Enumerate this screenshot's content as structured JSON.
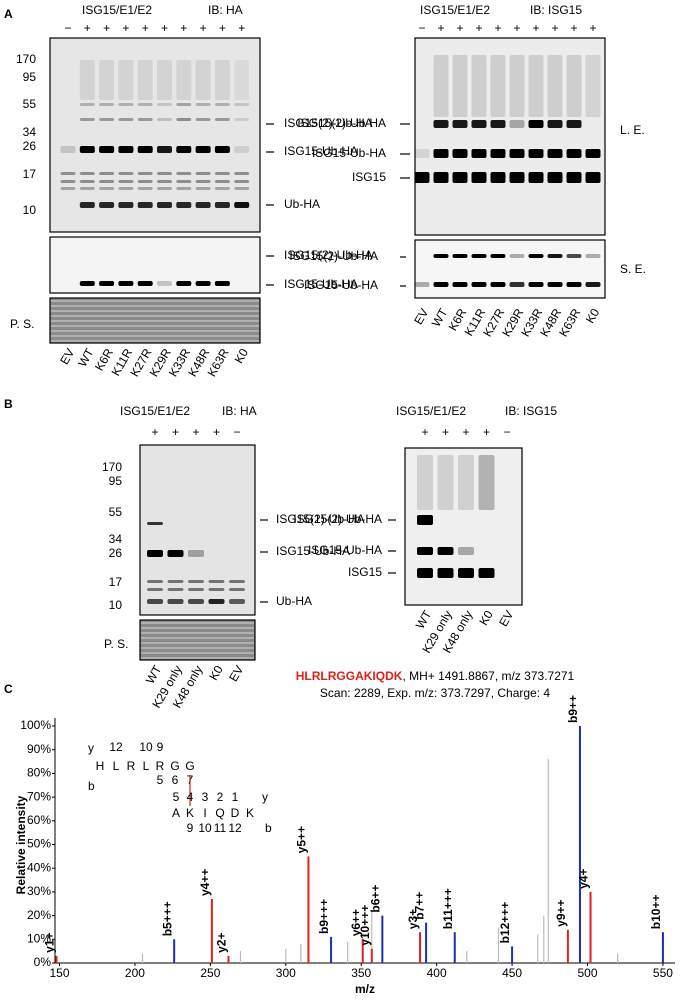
{
  "panel_a": {
    "label": "A",
    "left": {
      "header": "ISG15/E1/E2",
      "ib": "IB: HA",
      "signs": [
        "−",
        "+",
        "+",
        "+",
        "+",
        "+",
        "+",
        "+",
        "+",
        "+"
      ],
      "mw_markers": [
        170,
        95,
        55,
        34,
        26,
        17,
        10
      ],
      "bands": [
        "ISG15(2)-Ub-HA",
        "ISG15-Ub-HA",
        "Ub-HA"
      ],
      "se_bands": [
        "ISG15(2)-Ub-HA",
        "ISG15-Ub-HA"
      ],
      "ps": "P. S.",
      "lanes": [
        "EV",
        "WT",
        "K6R",
        "K11R",
        "K27R",
        "K29R",
        "K33R",
        "K48R",
        "K63R",
        "K0"
      ]
    },
    "right": {
      "header": "ISG15/E1/E2",
      "ib": "IB: ISG15",
      "signs": [
        "−",
        "+",
        "+",
        "+",
        "+",
        "+",
        "+",
        "+",
        "+",
        "+"
      ],
      "bands": [
        "ISG15(2)-Ub-HA",
        "ISG15-Ub-HA",
        "ISG15"
      ],
      "le": "L. E.",
      "se": "S. E.",
      "se_bands": [
        "ISG15(2)-Ub-HA",
        "ISG15-Ub-HA"
      ],
      "lanes": [
        "EV",
        "WT",
        "K6R",
        "K11R",
        "K27R",
        "K29R",
        "K33R",
        "K48R",
        "K63R",
        "K0"
      ]
    }
  },
  "panel_b": {
    "label": "B",
    "left": {
      "header": "ISG15/E1/E2",
      "ib": "IB: HA",
      "signs": [
        "+",
        "+",
        "+",
        "+",
        "−"
      ],
      "mw_markers": [
        170,
        95,
        55,
        34,
        26,
        17,
        10
      ],
      "bands": [
        "ISG15(2)-Ub-HA",
        "ISG15-Ub-HA",
        "Ub-HA"
      ],
      "ps": "P. S.",
      "lanes": [
        "WT",
        "K29 only",
        "K48 only",
        "K0",
        "EV"
      ]
    },
    "right": {
      "header": "ISG15/E1/E2",
      "ib": "IB: ISG15",
      "signs": [
        "+",
        "+",
        "+",
        "+",
        "−"
      ],
      "bands": [
        "ISG15(2)-Ub-HA",
        "ISG15-Ub-HA",
        "ISG15"
      ],
      "lanes": [
        "WT",
        "K29 only",
        "K48 only",
        "K0",
        "EV"
      ]
    }
  },
  "panel_c": {
    "label": "C",
    "peptide": "HLRLRGGAKIQDK",
    "peptide_info": ", MH+ 1491.8867, m/z 373.7271",
    "scan_info": "Scan: 2289, Exp. m/z: 373.7297, Charge: 4",
    "fragment_map": {
      "y_label": "y",
      "b_label": "b",
      "top_numbers": [
        12,
        10,
        9
      ],
      "letters1": [
        "H",
        "L",
        "R",
        "L",
        "R",
        "G",
        "G"
      ],
      "mid_numbers": [
        5,
        6,
        7
      ],
      "y_numbers2": [
        5,
        4,
        3,
        2,
        1
      ],
      "letters2": [
        "A",
        "K",
        "I",
        "Q",
        "D",
        "K"
      ],
      "b_numbers2": [
        9,
        10,
        11,
        12
      ]
    }
  },
  "chart_data": {
    "type": "stem",
    "x_label": "m/z",
    "y_label": "Relative intensity",
    "xlim": [
      147,
      558
    ],
    "xticks": [
      150,
      200,
      250,
      300,
      350,
      400,
      450,
      500,
      550
    ],
    "ylim": [
      0,
      100
    ],
    "yticks": [
      {
        "value": 0,
        "label": "0%"
      },
      {
        "value": 10,
        "label": "10%"
      },
      {
        "value": 20,
        "label": "20%"
      },
      {
        "value": 30,
        "label": "30%"
      },
      {
        "value": 40,
        "label": "40%"
      },
      {
        "value": 50,
        "label": "50%"
      },
      {
        "value": 60,
        "label": "60%"
      },
      {
        "value": 70,
        "label": "70%"
      },
      {
        "value": 80,
        "label": "80%"
      },
      {
        "value": 90,
        "label": "90%"
      },
      {
        "value": 100,
        "label": "100%"
      }
    ],
    "peaks": {
      "labels": [
        "y1+",
        "b5+++",
        "y4++",
        "y2+",
        "y5++",
        "b9+++",
        "y6++",
        "y10+++",
        "b6++",
        "y3+",
        "b7++",
        "b11+++",
        "b12+++",
        "y9++",
        "b9++",
        "y4+",
        "b10++"
      ],
      "x": [
        148,
        226,
        251,
        262,
        315,
        330,
        351,
        357,
        364,
        389,
        393,
        412,
        450,
        487,
        495,
        502,
        550
      ],
      "values": [
        3,
        10,
        27,
        3,
        45,
        11,
        10,
        6,
        20,
        13,
        17,
        13,
        7,
        14,
        100,
        30,
        13
      ],
      "colors": [
        "#e0201b",
        "#1c2fae",
        "#e0201b",
        "#e0201b",
        "#e0201b",
        "#1c2fae",
        "#e0201b",
        "#e0201b",
        "#1c2fae",
        "#e0201b",
        "#1c2fae",
        "#1c2fae",
        "#1c2fae",
        "#e0201b",
        "#1c2fae",
        "#e0201b",
        "#1c2fae"
      ]
    },
    "background_peaks": {
      "color": "#bbbbbb",
      "x": [
        205,
        270,
        300,
        310,
        341,
        357,
        420,
        441,
        467,
        471,
        474,
        520
      ],
      "values": [
        4,
        5,
        6,
        8,
        9,
        22,
        5,
        15,
        12,
        20,
        86,
        4
      ]
    }
  }
}
